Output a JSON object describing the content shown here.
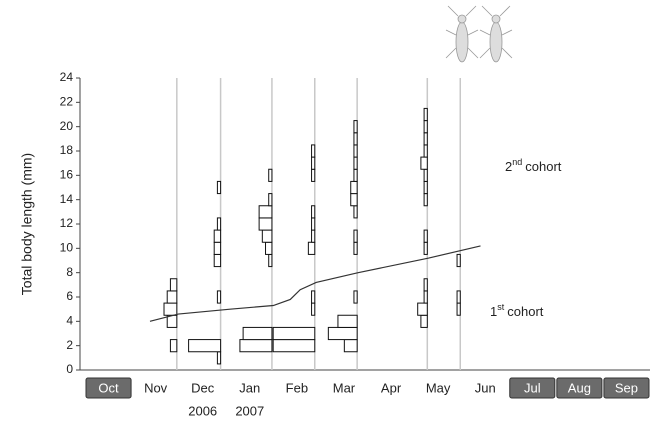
{
  "chart_data": {
    "type": "length-frequency",
    "y_label": "Total body length (mm)",
    "ylim": [
      0,
      24
    ],
    "yticks": [
      0,
      2,
      4,
      6,
      8,
      10,
      12,
      14,
      16,
      18,
      20,
      22,
      24
    ],
    "xlim": [
      -0.5,
      11.5
    ],
    "categories": [
      "Oct",
      "Nov",
      "Dec",
      "Jan",
      "Feb",
      "Mar",
      "Apr",
      "May",
      "Jun",
      "Jul",
      "Aug",
      "Sep"
    ],
    "shaded": [
      true,
      false,
      false,
      false,
      false,
      false,
      false,
      false,
      false,
      true,
      true,
      true
    ],
    "years": [
      {
        "label": "2006",
        "x": 2
      },
      {
        "label": "2007",
        "x": 3
      }
    ],
    "bar_color": "#ffffff",
    "sample_line_color": "#c8c8c8",
    "samples": [
      {
        "x": 1.45,
        "bins": [
          1.5,
          2.5,
          3.5,
          4.5,
          5.5,
          6.5,
          7.5
        ],
        "counts": [
          2,
          0,
          3,
          4,
          3,
          2
        ]
      },
      {
        "x": 2.38,
        "bins": [
          0.5,
          1.5,
          2.5,
          3.5,
          4.5,
          5.5,
          6.5,
          7.5,
          8.5,
          9.5,
          10.5,
          11.5,
          12.5,
          13.5,
          14.5,
          15.5
        ],
        "counts": [
          1,
          10,
          0,
          0,
          0,
          1,
          0,
          0,
          2,
          2,
          2,
          1,
          0,
          0,
          1
        ]
      },
      {
        "x": 3.47,
        "bins": [
          1.5,
          2.5,
          3.5,
          4.5,
          5.5,
          6.5,
          7.5,
          8.5,
          9.5,
          10.5,
          11.5,
          12.5,
          13.5,
          14.5,
          15.5,
          16.5
        ],
        "counts": [
          10,
          9,
          0,
          0,
          0,
          0,
          0,
          1,
          2,
          3,
          4,
          4,
          1,
          0,
          1
        ]
      },
      {
        "x": 4.38,
        "bins": [
          1.5,
          2.5,
          3.5,
          4.5,
          5.5,
          6.5,
          7.5,
          8.5,
          9.5,
          10.5,
          11.5,
          12.5,
          13.5,
          14.5,
          15.5,
          16.5,
          17.5,
          18.5
        ],
        "counts": [
          13,
          13,
          0,
          1,
          1,
          0,
          0,
          0,
          2,
          1,
          1,
          1,
          0,
          0,
          1,
          1,
          1
        ]
      },
      {
        "x": 5.28,
        "bins": [
          1.5,
          2.5,
          3.5,
          4.5,
          5.5,
          6.5,
          7.5,
          8.5,
          9.5,
          10.5,
          11.5,
          12.5,
          13.5,
          14.5,
          15.5,
          16.5,
          17.5,
          18.5,
          19.5,
          20.5
        ],
        "counts": [
          4,
          9,
          6,
          0,
          1,
          0,
          0,
          0,
          1,
          1,
          0,
          1,
          2,
          2,
          1,
          1,
          1,
          1,
          1
        ]
      },
      {
        "x": 6.77,
        "bins": [
          3.5,
          4.5,
          5.5,
          6.5,
          7.5,
          8.5,
          9.5,
          10.5,
          11.5,
          12.5,
          13.5,
          14.5,
          15.5,
          16.5,
          17.5,
          18.5,
          19.5,
          20.5,
          21.5
        ],
        "counts": [
          2,
          3,
          1,
          1,
          0,
          0,
          1,
          1,
          0,
          0,
          1,
          1,
          1,
          2,
          1,
          1,
          1,
          1
        ]
      },
      {
        "x": 7.47,
        "bins": [
          4.5,
          5.5,
          6.5,
          7.5,
          8.5,
          9.5
        ],
        "counts": [
          1,
          1,
          0,
          0,
          1
        ]
      }
    ],
    "growth_line": {
      "color": "#333333",
      "x": [
        0.88,
        1.48,
        2.58,
        3.5,
        3.86,
        4.07,
        4.41,
        5.3,
        6.8,
        7.9
      ],
      "y": [
        4,
        4.6,
        5.0,
        5.3,
        5.8,
        6.6,
        7.2,
        8.0,
        9.2,
        10.2
      ]
    },
    "cohorts": [
      {
        "ordinal": "2",
        "suffix": "nd",
        "text": "cohort"
      },
      {
        "ordinal": "1",
        "suffix": "st",
        "text": "cohort"
      }
    ]
  }
}
